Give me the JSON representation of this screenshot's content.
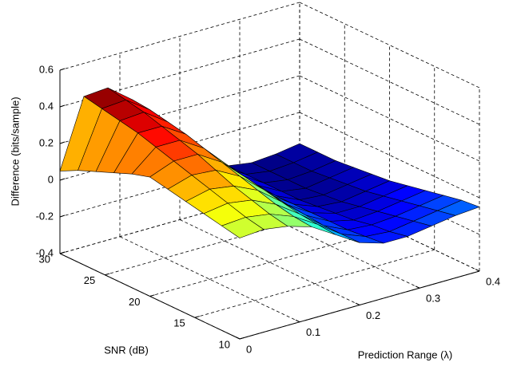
{
  "chart_data": {
    "type": "surface",
    "colormap": "jet",
    "xlabel": "Prediction Range (λ)",
    "ylabel": "SNR (dB)",
    "zlabel": "Difference (bits/sample)",
    "x": [
      0,
      0.04,
      0.08,
      0.12,
      0.16,
      0.2,
      0.24,
      0.28,
      0.32,
      0.36,
      0.4
    ],
    "y": [
      10,
      12,
      14,
      16,
      18,
      20,
      22,
      24,
      26,
      28,
      30
    ],
    "z": [
      [
        0.15,
        0.16,
        0.14,
        0.1,
        0.02,
        -0.06,
        -0.1,
        -0.1,
        -0.08,
        -0.06,
        -0.05
      ],
      [
        0.17,
        0.18,
        0.16,
        0.11,
        0.03,
        -0.06,
        -0.11,
        -0.12,
        -0.1,
        -0.08,
        -0.06
      ],
      [
        0.19,
        0.21,
        0.19,
        0.13,
        0.04,
        -0.06,
        -0.12,
        -0.13,
        -0.12,
        -0.1,
        -0.08
      ],
      [
        0.21,
        0.24,
        0.22,
        0.16,
        0.06,
        -0.05,
        -0.12,
        -0.15,
        -0.14,
        -0.12,
        -0.1
      ],
      [
        0.23,
        0.27,
        0.26,
        0.19,
        0.08,
        -0.04,
        -0.12,
        -0.16,
        -0.16,
        -0.14,
        -0.12
      ],
      [
        0.25,
        0.3,
        0.3,
        0.22,
        0.1,
        -0.03,
        -0.12,
        -0.17,
        -0.18,
        -0.16,
        -0.14
      ],
      [
        0.22,
        0.33,
        0.33,
        0.25,
        0.12,
        -0.02,
        -0.12,
        -0.18,
        -0.19,
        -0.17,
        -0.15
      ],
      [
        0.18,
        0.36,
        0.36,
        0.28,
        0.14,
        0,
        -0.11,
        -0.18,
        -0.2,
        -0.18,
        -0.16
      ],
      [
        0.14,
        0.38,
        0.39,
        0.3,
        0.16,
        0.01,
        -0.1,
        -0.18,
        -0.2,
        -0.19,
        -0.17
      ],
      [
        0.1,
        0.4,
        0.41,
        0.32,
        0.17,
        0.02,
        -0.1,
        -0.18,
        -0.2,
        -0.19,
        -0.17
      ],
      [
        0.05,
        0.42,
        0.43,
        0.33,
        0.18,
        0.02,
        -0.1,
        -0.18,
        -0.2,
        -0.19,
        -0.17
      ]
    ],
    "xlim": [
      0,
      0.4
    ],
    "ylim": [
      10,
      30
    ],
    "zlim": [
      -0.4,
      0.6
    ],
    "xticks": [
      0,
      0.1,
      0.2,
      0.3,
      0.4
    ],
    "yticks": [
      10,
      15,
      20,
      25,
      30
    ],
    "zticks": [
      -0.4,
      -0.2,
      0,
      0.2,
      0.4,
      0.6
    ],
    "grid": true
  }
}
